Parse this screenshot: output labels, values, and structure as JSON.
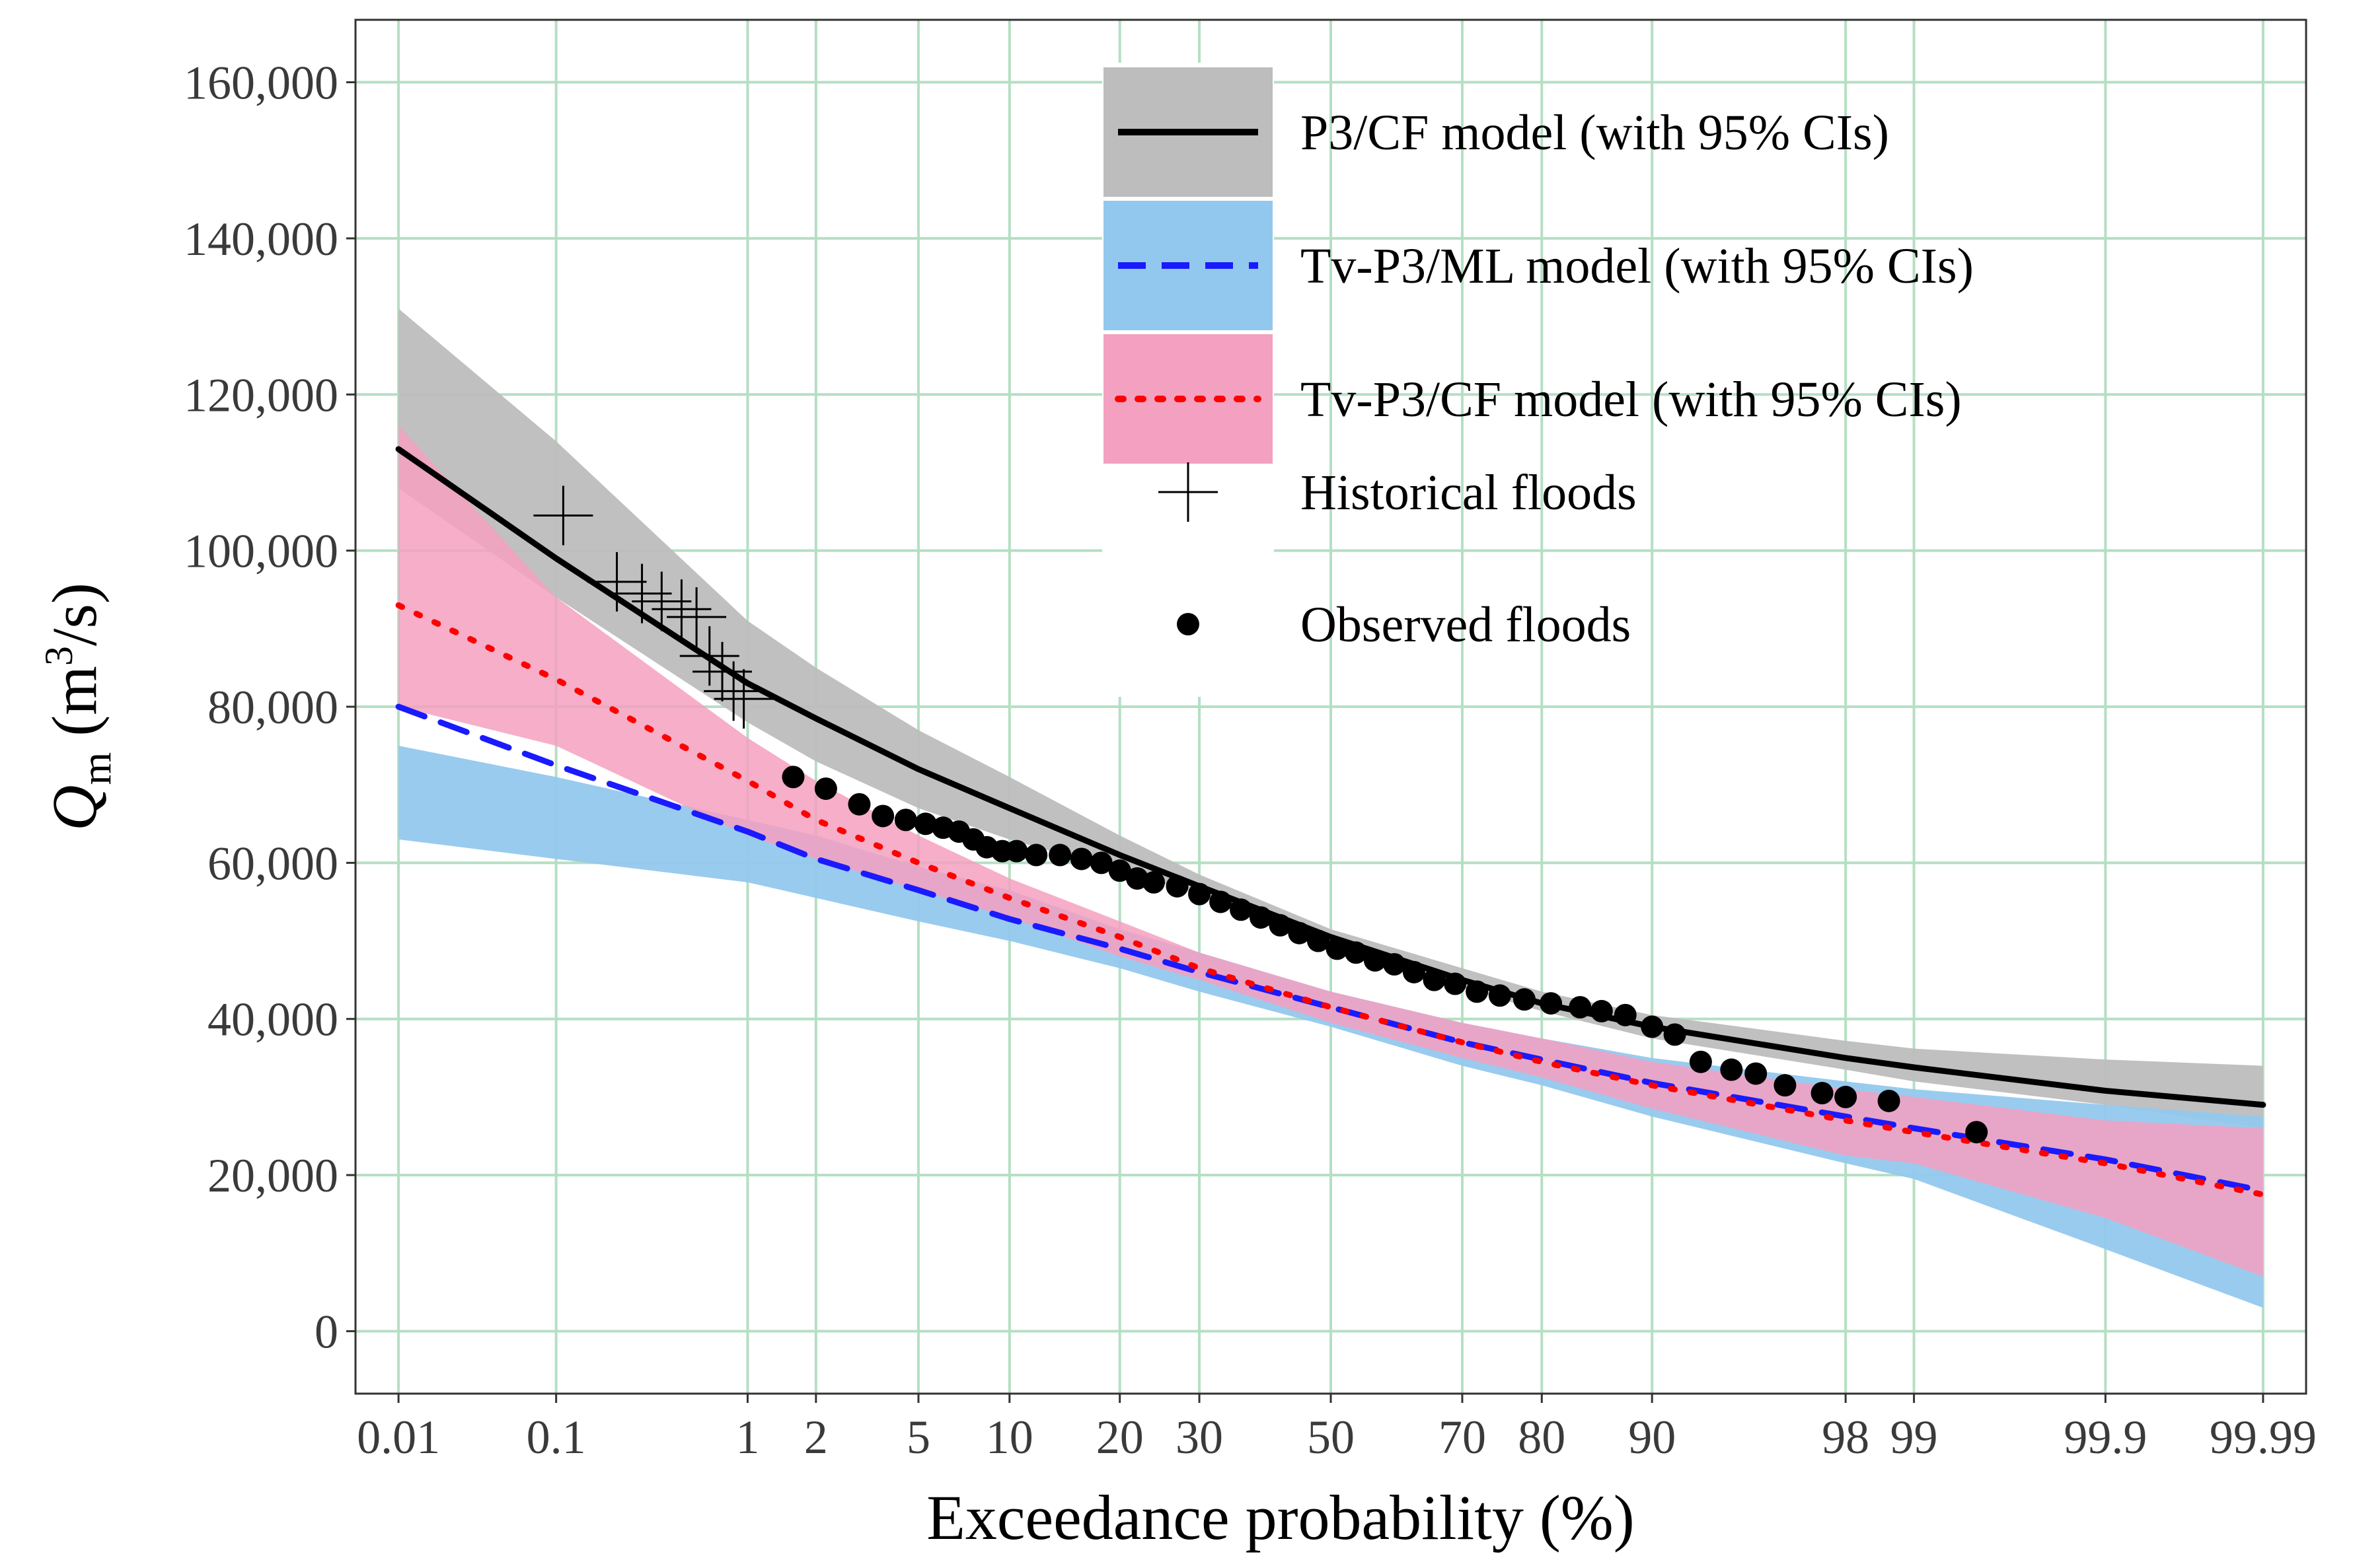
{
  "chart_data": {
    "type": "line",
    "xscale": "normal-probability",
    "xlabel": "Exceedance probability (%)",
    "ylabel": {
      "symbol": "Q",
      "subscript": "m",
      "units_open": " (m",
      "units_sup": "3",
      "units_close": "/s)"
    },
    "ylim": [
      -8000,
      168000
    ],
    "xlim": [
      0.005,
      99.995
    ],
    "x_ticks": [
      {
        "value": 0.01,
        "label": "0.01"
      },
      {
        "value": 0.1,
        "label": "0.1"
      },
      {
        "value": 1,
        "label": "1"
      },
      {
        "value": 2,
        "label": "2"
      },
      {
        "value": 5,
        "label": "5"
      },
      {
        "value": 10,
        "label": "10"
      },
      {
        "value": 20,
        "label": "20"
      },
      {
        "value": 30,
        "label": "30"
      },
      {
        "value": 50,
        "label": "50"
      },
      {
        "value": 70,
        "label": "70"
      },
      {
        "value": 80,
        "label": "80"
      },
      {
        "value": 90,
        "label": "90"
      },
      {
        "value": 98,
        "label": "98"
      },
      {
        "value": 99,
        "label": "99"
      },
      {
        "value": 99.9,
        "label": "99.9"
      },
      {
        "value": 99.99,
        "label": "99.99"
      }
    ],
    "y_ticks": [
      {
        "value": 0,
        "label": "0"
      },
      {
        "value": 20000,
        "label": "20,000"
      },
      {
        "value": 40000,
        "label": "40,000"
      },
      {
        "value": 60000,
        "label": "60,000"
      },
      {
        "value": 80000,
        "label": "80,000"
      },
      {
        "value": 100000,
        "label": "100,000"
      },
      {
        "value": 120000,
        "label": "120,000"
      },
      {
        "value": 140000,
        "label": "140,000"
      },
      {
        "value": 160000,
        "label": "160,000"
      }
    ],
    "grid": true,
    "legend_position": "top-center",
    "series": [
      {
        "name": "P3/CF model (with 95% CIs)",
        "style": "solid",
        "color": "#000000",
        "band_color": "#bdbdbd",
        "x": [
          0.01,
          0.1,
          1,
          2,
          5,
          10,
          20,
          30,
          50,
          70,
          80,
          90,
          98,
          99,
          99.9,
          99.99
        ],
        "values": [
          113000,
          99000,
          83000,
          78500,
          72000,
          67000,
          61000,
          57000,
          50500,
          45000,
          42000,
          39000,
          35000,
          33800,
          30800,
          29000
        ],
        "lower": [
          108000,
          94000,
          78000,
          73000,
          67000,
          63000,
          59000,
          56000,
          50000,
          44000,
          41000,
          37500,
          33500,
          32000,
          29000,
          26000
        ],
        "upper": [
          131000,
          114000,
          91000,
          85000,
          77000,
          71000,
          63500,
          58500,
          51500,
          46500,
          43500,
          40500,
          37200,
          36200,
          34800,
          34000
        ]
      },
      {
        "name": "Tv-P3/ML model (with 95% CIs)",
        "style": "dashed",
        "color": "#1a1aff",
        "band_color": "#93c8ee",
        "x": [
          0.01,
          0.1,
          1,
          2,
          5,
          10,
          20,
          30,
          50,
          70,
          80,
          90,
          98,
          99,
          99.9,
          99.99
        ],
        "values": [
          80000,
          72500,
          64000,
          60500,
          56500,
          52800,
          49000,
          46000,
          41500,
          37000,
          34800,
          31800,
          27500,
          26000,
          22000,
          18000
        ],
        "lower": [
          63000,
          60500,
          57500,
          55500,
          52500,
          50000,
          46500,
          43500,
          39000,
          34000,
          31500,
          27500,
          21500,
          19500,
          10500,
          3000
        ],
        "upper": [
          75000,
          71000,
          65500,
          63500,
          59500,
          56500,
          51500,
          48500,
          43500,
          39500,
          37500,
          35000,
          32000,
          31000,
          29000,
          27500
        ]
      },
      {
        "name": "Tv-P3/CF model (with 95% CIs)",
        "style": "dotted",
        "color": "#ff0000",
        "band_color": "#f4a0c0",
        "x": [
          0.01,
          0.1,
          1,
          2,
          5,
          10,
          20,
          30,
          50,
          70,
          80,
          90,
          98,
          99,
          99.9,
          99.99
        ],
        "values": [
          93000,
          83500,
          70500,
          65500,
          60000,
          55500,
          50500,
          46500,
          41500,
          37000,
          34500,
          31500,
          27000,
          25500,
          21500,
          17500
        ],
        "lower": [
          80000,
          75000,
          63500,
          60500,
          56500,
          53000,
          48000,
          45000,
          39500,
          35000,
          32500,
          28500,
          22500,
          21500,
          14500,
          7000
        ],
        "upper": [
          116000,
          94000,
          76000,
          70500,
          63500,
          58000,
          52500,
          48500,
          43500,
          39500,
          37500,
          34500,
          31000,
          30000,
          27000,
          26000
        ]
      }
    ],
    "historical_floods": {
      "name": "Historical floods",
      "x": [
        0.11,
        0.22,
        0.3,
        0.38,
        0.48,
        0.57,
        0.66,
        0.76,
        0.86,
        0.96
      ],
      "values": [
        104500,
        96000,
        94500,
        93500,
        92500,
        91500,
        86500,
        84500,
        82000,
        81000
      ]
    },
    "observed_floods": {
      "name": "Observed floods",
      "x": [
        1.6,
        2.2,
        3.0,
        3.7,
        4.5,
        5.3,
        6.1,
        6.9,
        7.7,
        8.5,
        9.5,
        10.5,
        12,
        14,
        16,
        18,
        20,
        22,
        24,
        27,
        30,
        33,
        36,
        39,
        42,
        45,
        48,
        51,
        54,
        57,
        60,
        63,
        66,
        69,
        72,
        75,
        78,
        81,
        84,
        86,
        88,
        90,
        91.5,
        93,
        94.5,
        95.5,
        96.5,
        97.5,
        98,
        98.7,
        99.5
      ],
      "values": [
        71000,
        69500,
        67500,
        66000,
        65500,
        65000,
        64500,
        64000,
        63000,
        62000,
        61500,
        61500,
        61000,
        61000,
        60500,
        60000,
        59000,
        58000,
        57500,
        57000,
        56000,
        55000,
        54000,
        53000,
        52000,
        51000,
        50000,
        49000,
        48500,
        47500,
        47000,
        46000,
        45000,
        44500,
        43500,
        43000,
        42500,
        42000,
        41500,
        41000,
        40500,
        39000,
        38000,
        34500,
        33500,
        33000,
        31500,
        30500,
        30000,
        29500,
        25500
      ]
    },
    "legend": [
      {
        "label": "P3/CF model (with 95% CIs)",
        "kind": "line-band",
        "line_color": "#000000",
        "band_color": "#bdbdbd",
        "style": "solid"
      },
      {
        "label": "Tv-P3/ML model (with 95% CIs)",
        "kind": "line-band",
        "line_color": "#1a1aff",
        "band_color": "#93c8ee",
        "style": "dashed"
      },
      {
        "label": "Tv-P3/CF model (with 95% CIs)",
        "kind": "line-band",
        "line_color": "#ff0000",
        "band_color": "#f4a0c0",
        "style": "dotted"
      },
      {
        "label": "Historical floods",
        "kind": "cross"
      },
      {
        "label": "Observed floods",
        "kind": "dot"
      }
    ]
  },
  "colors": {
    "grid": "#b5dfc3",
    "panel_border": "#333333",
    "point": "#000000",
    "overlap_purple": "#5522cc"
  }
}
